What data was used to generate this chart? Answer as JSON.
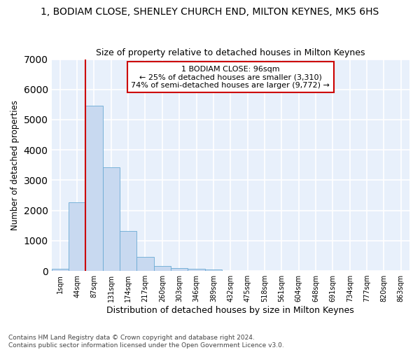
{
  "title": "1, BODIAM CLOSE, SHENLEY CHURCH END, MILTON KEYNES, MK5 6HS",
  "subtitle": "Size of property relative to detached houses in Milton Keynes",
  "xlabel": "Distribution of detached houses by size in Milton Keynes",
  "ylabel": "Number of detached properties",
  "footnote": "Contains HM Land Registry data © Crown copyright and database right 2024.\nContains public sector information licensed under the Open Government Licence v3.0.",
  "bar_color": "#c8d9f0",
  "bar_edge_color": "#6aaad4",
  "background_color": "#e8f0fb",
  "grid_color": "#ffffff",
  "categories": [
    "1sqm",
    "44sqm",
    "87sqm",
    "131sqm",
    "174sqm",
    "217sqm",
    "260sqm",
    "303sqm",
    "346sqm",
    "389sqm",
    "432sqm",
    "475sqm",
    "518sqm",
    "561sqm",
    "604sqm",
    "648sqm",
    "691sqm",
    "734sqm",
    "777sqm",
    "820sqm",
    "863sqm"
  ],
  "values": [
    75,
    2280,
    5470,
    3430,
    1310,
    460,
    160,
    105,
    70,
    40,
    0,
    0,
    0,
    0,
    0,
    0,
    0,
    0,
    0,
    0,
    0
  ],
  "ylim": [
    0,
    7000
  ],
  "yticks": [
    0,
    1000,
    2000,
    3000,
    4000,
    5000,
    6000,
    7000
  ],
  "vline_color": "#cc0000",
  "vline_x_index": 2,
  "annotation_text": "1 BODIAM CLOSE: 96sqm\n← 25% of detached houses are smaller (3,310)\n74% of semi-detached houses are larger (9,772) →",
  "annotation_box_color": "#ffffff",
  "annotation_box_edge": "#cc0000",
  "title_fontsize": 10,
  "subtitle_fontsize": 9,
  "ylabel_fontsize": 8.5,
  "xlabel_fontsize": 9,
  "tick_fontsize": 7,
  "footnote_fontsize": 6.5
}
